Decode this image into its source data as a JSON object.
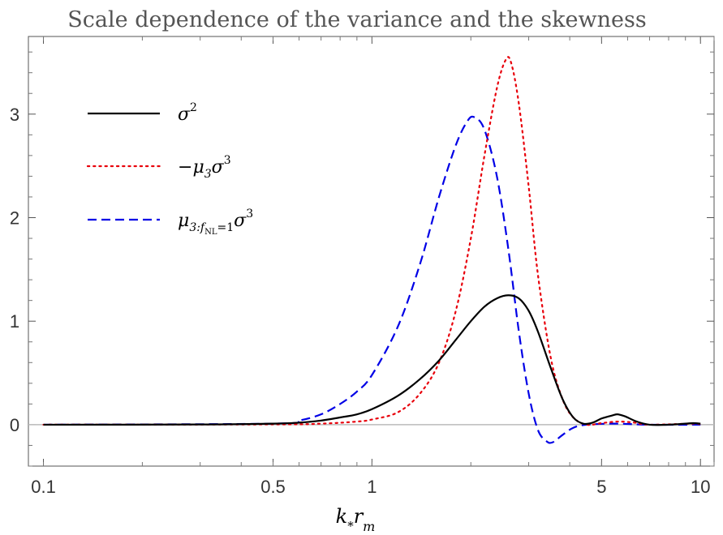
{
  "chart_data": {
    "type": "line",
    "title": "Scale dependence of the variance and the skewness",
    "xlabel": "k*rm",
    "ylabel": "",
    "x_scale": "log",
    "xlim": [
      0.09,
      11
    ],
    "ylim": [
      -0.4,
      3.75
    ],
    "x_ticks": [
      {
        "value": 0.1,
        "label": "0.1"
      },
      {
        "value": 0.5,
        "label": "0.5"
      },
      {
        "value": 1,
        "label": "1"
      },
      {
        "value": 5,
        "label": "5"
      },
      {
        "value": 10,
        "label": "10"
      }
    ],
    "y_ticks": [
      {
        "value": 0,
        "label": "0"
      },
      {
        "value": 1,
        "label": "1"
      },
      {
        "value": 2,
        "label": "2"
      },
      {
        "value": 3,
        "label": "3"
      }
    ],
    "legend_position": "top-left",
    "zero_line": true,
    "series": [
      {
        "name": "σ²",
        "color": "#000000",
        "dash": "solid",
        "points": [
          [
            0.1,
            0
          ],
          [
            0.3,
            0.002
          ],
          [
            0.5,
            0.01
          ],
          [
            0.6,
            0.02
          ],
          [
            0.7,
            0.04
          ],
          [
            0.8,
            0.07
          ],
          [
            0.9,
            0.1
          ],
          [
            1.0,
            0.15
          ],
          [
            1.2,
            0.28
          ],
          [
            1.4,
            0.44
          ],
          [
            1.6,
            0.62
          ],
          [
            1.8,
            0.82
          ],
          [
            2.0,
            1.0
          ],
          [
            2.2,
            1.14
          ],
          [
            2.4,
            1.22
          ],
          [
            2.6,
            1.25
          ],
          [
            2.8,
            1.22
          ],
          [
            3.0,
            1.1
          ],
          [
            3.2,
            0.9
          ],
          [
            3.5,
            0.55
          ],
          [
            3.8,
            0.25
          ],
          [
            4.1,
            0.07
          ],
          [
            4.4,
            0.01
          ],
          [
            4.7,
            0.02
          ],
          [
            5.0,
            0.06
          ],
          [
            5.4,
            0.09
          ],
          [
            5.6,
            0.1
          ],
          [
            5.9,
            0.08
          ],
          [
            6.4,
            0.03
          ],
          [
            7.0,
            0.0
          ],
          [
            8.0,
            0.0
          ],
          [
            9.0,
            0.01
          ],
          [
            9.5,
            0.015
          ],
          [
            10.0,
            0.01
          ]
        ]
      },
      {
        "name": "−μ₃σ³",
        "color": "#e8000b",
        "dash": "dotted",
        "points": [
          [
            0.1,
            0
          ],
          [
            0.5,
            0.003
          ],
          [
            0.7,
            0.01
          ],
          [
            0.9,
            0.03
          ],
          [
            1.0,
            0.05
          ],
          [
            1.2,
            0.12
          ],
          [
            1.4,
            0.3
          ],
          [
            1.6,
            0.6
          ],
          [
            1.8,
            1.1
          ],
          [
            2.0,
            1.8
          ],
          [
            2.2,
            2.6
          ],
          [
            2.4,
            3.25
          ],
          [
            2.55,
            3.52
          ],
          [
            2.65,
            3.5
          ],
          [
            2.8,
            3.1
          ],
          [
            3.0,
            2.3
          ],
          [
            3.2,
            1.45
          ],
          [
            3.5,
            0.65
          ],
          [
            3.8,
            0.25
          ],
          [
            4.1,
            0.07
          ],
          [
            4.5,
            0.0
          ],
          [
            5.0,
            0.015
          ],
          [
            5.6,
            0.03
          ],
          [
            6.3,
            0.02
          ],
          [
            7.0,
            0.0
          ],
          [
            9.5,
            0.01
          ],
          [
            10.0,
            0.0
          ]
        ]
      },
      {
        "name": "μ₃:fNL=1σ³",
        "color": "#0000e6",
        "dash": "dashed",
        "points": [
          [
            0.1,
            0
          ],
          [
            0.5,
            0.01
          ],
          [
            0.6,
            0.04
          ],
          [
            0.7,
            0.1
          ],
          [
            0.8,
            0.2
          ],
          [
            0.9,
            0.32
          ],
          [
            1.0,
            0.48
          ],
          [
            1.2,
            0.95
          ],
          [
            1.4,
            1.55
          ],
          [
            1.6,
            2.2
          ],
          [
            1.8,
            2.7
          ],
          [
            1.95,
            2.93
          ],
          [
            2.05,
            2.97
          ],
          [
            2.2,
            2.85
          ],
          [
            2.4,
            2.4
          ],
          [
            2.6,
            1.7
          ],
          [
            2.8,
            0.9
          ],
          [
            3.0,
            0.3
          ],
          [
            3.2,
            -0.05
          ],
          [
            3.4,
            -0.16
          ],
          [
            3.55,
            -0.17
          ],
          [
            3.8,
            -0.1
          ],
          [
            4.1,
            -0.03
          ],
          [
            4.5,
            0.0
          ],
          [
            5.5,
            0.01
          ],
          [
            7.0,
            0.0
          ],
          [
            10.0,
            0.0
          ]
        ]
      }
    ]
  },
  "legend": [
    {
      "base": "σ",
      "sup": "2",
      "color": "#000000",
      "dash": "solid"
    },
    {
      "prefix": "−",
      "base": "μ",
      "sub": "3",
      "base2": "σ",
      "sup": "3",
      "color": "#e8000b",
      "dash": "dotted"
    },
    {
      "base": "μ",
      "sub": "3:f",
      "subsub": "NL",
      "subtail": "=1",
      "base2": "σ",
      "sup": "3",
      "color": "#0000e6",
      "dash": "dashed"
    }
  ],
  "axis_label_parts": {
    "k": "k",
    "star": "*",
    "r": "r",
    "m": "m"
  }
}
